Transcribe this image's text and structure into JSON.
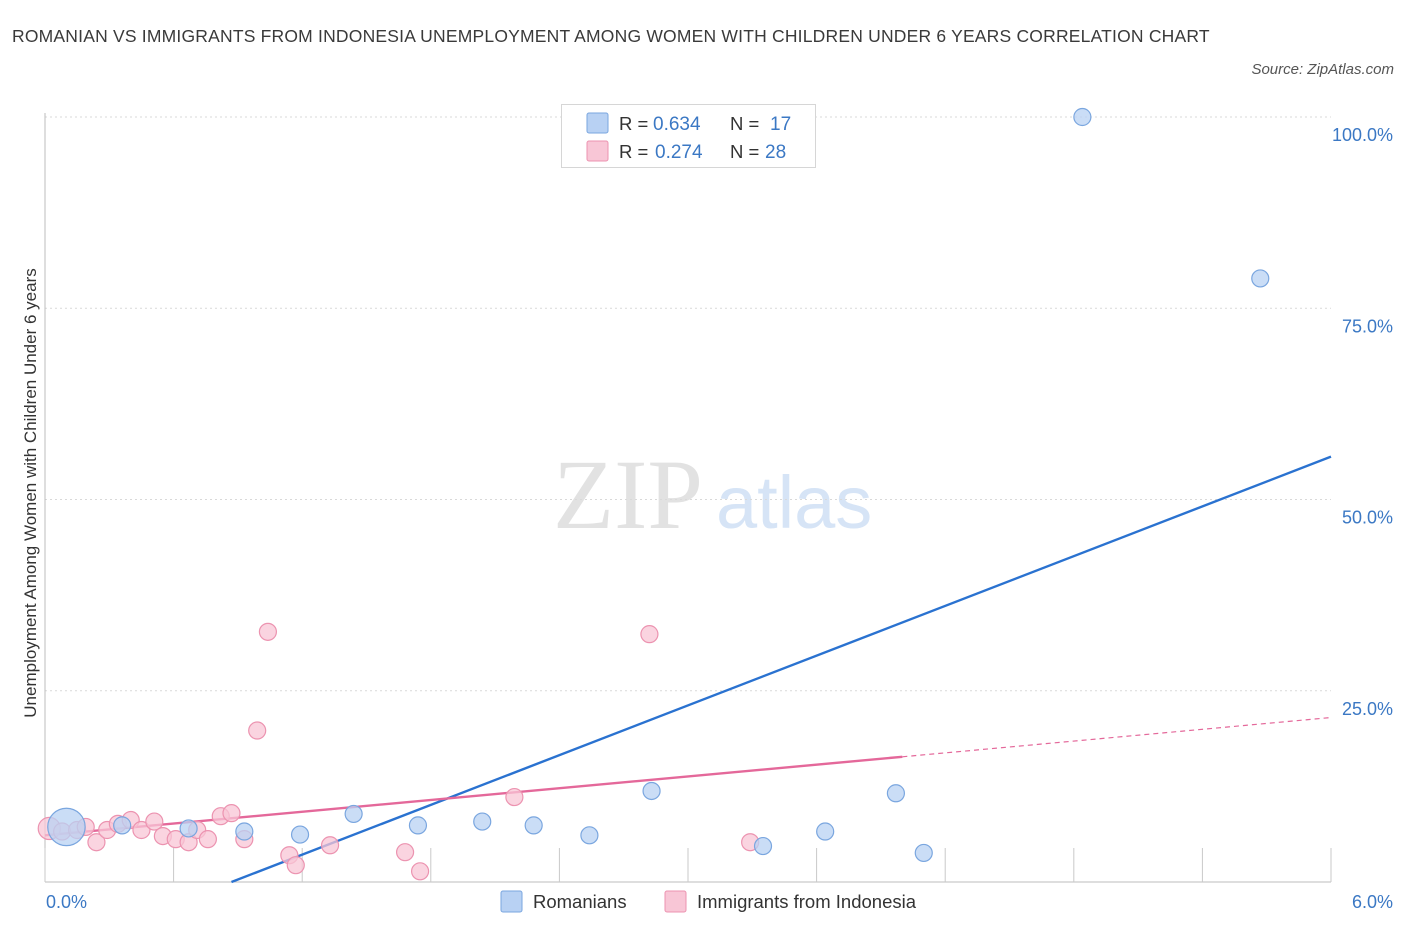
{
  "title": "ROMANIAN VS IMMIGRANTS FROM INDONESIA UNEMPLOYMENT AMONG WOMEN WITH CHILDREN UNDER 6 YEARS CORRELATION CHART",
  "source": "Source: ZipAtlas.com",
  "watermark": {
    "zip": "ZIP",
    "atlas": "atlas"
  },
  "colors": {
    "romanians_fill": "#b8d1f3",
    "romanians_stroke": "#7aa6df",
    "romanians_line": "#2a72d0",
    "indonesia_fill": "#f8c6d6",
    "indonesia_stroke": "#ec93b0",
    "indonesia_line": "#e4689a",
    "grid": "#d9d9d9",
    "tick_text": "#3b78c4"
  },
  "stats": {
    "romanians": {
      "r_label": "R =",
      "r": "0.634",
      "n_label": "N =",
      "n": "17"
    },
    "indonesia": {
      "r_label": "R =",
      "r": "0.274",
      "n_label": "N =",
      "n": "28"
    }
  },
  "chart_data": {
    "type": "scatter",
    "xlabel": "",
    "ylabel": "Unemployment Among Women with Children Under 6 years",
    "xlim": [
      0,
      6
    ],
    "ylim": [
      0,
      100
    ],
    "x_tick_labels": [
      "0.0%",
      "6.0%"
    ],
    "y_tick_labels": [
      "25.0%",
      "50.0%",
      "75.0%",
      "100.0%"
    ],
    "y_ticks": [
      25,
      50,
      75,
      100
    ],
    "grid": true,
    "legend_position": "bottom-center",
    "series": [
      {
        "name": "Romanians",
        "color": "#2a72d0",
        "points": [
          {
            "x": 0.1,
            "y": 7.2,
            "size": 2.2
          },
          {
            "x": 0.36,
            "y": 7.4,
            "size": 1
          },
          {
            "x": 0.67,
            "y": 7.0,
            "size": 1
          },
          {
            "x": 0.93,
            "y": 6.6,
            "size": 1
          },
          {
            "x": 1.19,
            "y": 6.2,
            "size": 1
          },
          {
            "x": 1.44,
            "y": 8.9,
            "size": 1
          },
          {
            "x": 1.74,
            "y": 7.4,
            "size": 1
          },
          {
            "x": 2.04,
            "y": 7.9,
            "size": 1
          },
          {
            "x": 2.28,
            "y": 7.4,
            "size": 1
          },
          {
            "x": 2.54,
            "y": 6.1,
            "size": 1
          },
          {
            "x": 2.83,
            "y": 11.9,
            "size": 1
          },
          {
            "x": 3.35,
            "y": 4.7,
            "size": 1
          },
          {
            "x": 3.64,
            "y": 6.6,
            "size": 1
          },
          {
            "x": 3.97,
            "y": 11.6,
            "size": 1
          },
          {
            "x": 4.1,
            "y": 3.8,
            "size": 1
          },
          {
            "x": 4.84,
            "y": 100.0,
            "size": 1
          },
          {
            "x": 5.67,
            "y": 78.9,
            "size": 1
          }
        ],
        "trend": {
          "x": [
            0.87,
            6.0
          ],
          "y": [
            0.0,
            55.6
          ],
          "solid_to_x": 6.0
        }
      },
      {
        "name": "Immigrants from Indonesia",
        "color": "#e4689a",
        "points": [
          {
            "x": 0.02,
            "y": 7.0,
            "size": 1.3
          },
          {
            "x": 0.08,
            "y": 6.6,
            "size": 1
          },
          {
            "x": 0.15,
            "y": 6.8,
            "size": 1
          },
          {
            "x": 0.19,
            "y": 7.2,
            "size": 1
          },
          {
            "x": 0.24,
            "y": 5.2,
            "size": 1
          },
          {
            "x": 0.29,
            "y": 6.8,
            "size": 1
          },
          {
            "x": 0.34,
            "y": 7.6,
            "size": 1
          },
          {
            "x": 0.4,
            "y": 8.1,
            "size": 1
          },
          {
            "x": 0.45,
            "y": 6.8,
            "size": 1
          },
          {
            "x": 0.51,
            "y": 7.9,
            "size": 1
          },
          {
            "x": 0.55,
            "y": 6.0,
            "size": 1
          },
          {
            "x": 0.61,
            "y": 5.6,
            "size": 1
          },
          {
            "x": 0.67,
            "y": 5.2,
            "size": 1
          },
          {
            "x": 0.71,
            "y": 6.8,
            "size": 1
          },
          {
            "x": 0.76,
            "y": 5.6,
            "size": 1
          },
          {
            "x": 0.82,
            "y": 8.6,
            "size": 1
          },
          {
            "x": 0.87,
            "y": 9.0,
            "size": 1
          },
          {
            "x": 0.93,
            "y": 5.6,
            "size": 1
          },
          {
            "x": 0.99,
            "y": 19.8,
            "size": 1
          },
          {
            "x": 1.04,
            "y": 32.7,
            "size": 1
          },
          {
            "x": 1.14,
            "y": 3.5,
            "size": 1
          },
          {
            "x": 1.17,
            "y": 2.2,
            "size": 1
          },
          {
            "x": 1.33,
            "y": 4.8,
            "size": 1
          },
          {
            "x": 1.68,
            "y": 3.9,
            "size": 1
          },
          {
            "x": 1.75,
            "y": 1.4,
            "size": 1
          },
          {
            "x": 2.19,
            "y": 11.1,
            "size": 1
          },
          {
            "x": 2.82,
            "y": 32.4,
            "size": 1
          },
          {
            "x": 3.29,
            "y": 5.2,
            "size": 1
          }
        ],
        "trend": {
          "x": [
            0.0,
            6.0
          ],
          "y": [
            6.1,
            21.5
          ],
          "solid_to_x": 4.0
        }
      }
    ]
  }
}
